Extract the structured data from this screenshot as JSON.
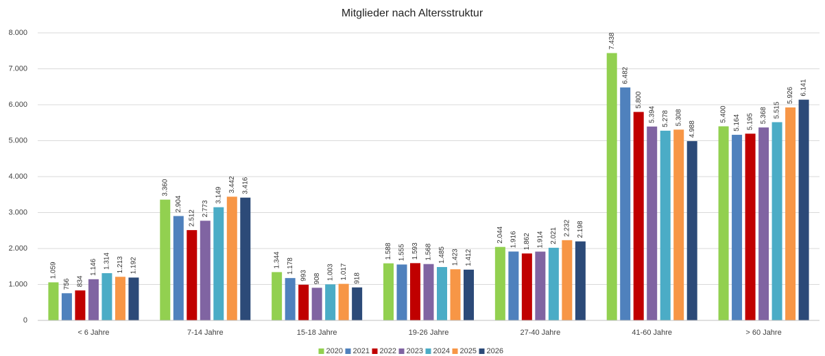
{
  "chart_data": {
    "type": "bar",
    "title": "Mitglieder nach Altersstruktur",
    "categories": [
      "< 6 Jahre",
      "7-14 Jahre",
      "15-18 Jahre",
      "19-26 Jahre",
      "27-40 Jahre",
      "41-60 Jahre",
      "> 60 Jahre"
    ],
    "series": [
      {
        "name": "2020",
        "color": "#92d050",
        "values": [
          1059,
          3360,
          1344,
          1588,
          2044,
          7438,
          5400
        ],
        "value_labels": [
          "1.059",
          "3.360",
          "1.344",
          "1.588",
          "2.044",
          "7.438",
          "5.400"
        ]
      },
      {
        "name": "2021",
        "color": "#4f81bd",
        "values": [
          756,
          2904,
          1178,
          1555,
          1916,
          6482,
          5164
        ],
        "value_labels": [
          "756",
          "2.904",
          "1.178",
          "1.555",
          "1.916",
          "6.482",
          "5.164"
        ]
      },
      {
        "name": "2022",
        "color": "#c00000",
        "values": [
          834,
          2512,
          993,
          1593,
          1862,
          5800,
          5195
        ],
        "value_labels": [
          "834",
          "2.512",
          "993",
          "1.593",
          "1.862",
          "5.800",
          "5.195"
        ]
      },
      {
        "name": "2023",
        "color": "#8064a2",
        "values": [
          1146,
          2773,
          908,
          1568,
          1914,
          5394,
          5368
        ],
        "value_labels": [
          "1.146",
          "2.773",
          "908",
          "1.568",
          "1.914",
          "5.394",
          "5.368"
        ]
      },
      {
        "name": "2024",
        "color": "#4bacc6",
        "values": [
          1314,
          3149,
          1003,
          1485,
          2021,
          5278,
          5515
        ],
        "value_labels": [
          "1.314",
          "3.149",
          "1.003",
          "1.485",
          "2.021",
          "5.278",
          "5.515"
        ]
      },
      {
        "name": "2025",
        "color": "#f79646",
        "values": [
          1213,
          3442,
          1017,
          1423,
          2232,
          5308,
          5926
        ],
        "value_labels": [
          "1.213",
          "3.442",
          "1.017",
          "1.423",
          "2.232",
          "5.308",
          "5.926"
        ]
      },
      {
        "name": "2026",
        "color": "#2c4a78",
        "values": [
          1192,
          3416,
          918,
          1412,
          2198,
          4988,
          6141
        ],
        "value_labels": [
          "1.192",
          "3.416",
          "918",
          "1.412",
          "2.198",
          "4.988",
          "6.141"
        ]
      }
    ],
    "ylim": [
      0,
      8000
    ],
    "yticks": [
      0,
      {
        "value": 1000,
        "label": "1.000"
      },
      {
        "value": 2000,
        "label": "2.000"
      },
      {
        "value": 3000,
        "label": "3.000"
      },
      {
        "value": 4000,
        "label": "4.000"
      },
      {
        "value": 5000,
        "label": "5.000"
      },
      {
        "value": 6000,
        "label": "6.000"
      },
      {
        "value": 7000,
        "label": "7.000"
      },
      {
        "value": 8000,
        "label": "8.000"
      }
    ],
    "grid": true,
    "legend": "bottom"
  }
}
